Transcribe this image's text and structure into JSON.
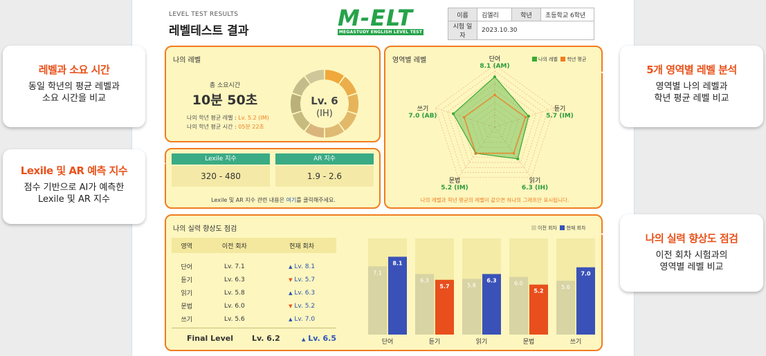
{
  "header": {
    "subtitle": "LEVEL TEST RESULTS",
    "title": "레벨테스트 결과",
    "logo_text": "M-ELT",
    "logo_sub": "MEGASTUDY ENGLISH LEVEL TEST",
    "info": {
      "name_label": "이름",
      "name_value": "김엘리",
      "grade_label": "학년",
      "grade_value": "초등학교 6학년",
      "date_label": "시험 일자",
      "date_value": "2023.10.30"
    }
  },
  "callouts": {
    "level": {
      "title": "레벨과 소요 시간",
      "desc1": "동일 학년의 평균 레벨과",
      "desc2": "소요 시간을 비교"
    },
    "lexile": {
      "title": "Lexile 및 AR 예측 지수",
      "desc1": "점수 기반으로 AI가 예측한",
      "desc2": "Lexile 및 AR 지수"
    },
    "radar": {
      "title": "5개 영역별 레벨 분석",
      "desc1": "영역별 나의 레벨과",
      "desc2": "학년 평균 레벨 비교"
    },
    "improve": {
      "title": "나의 실력 향상도 점검",
      "desc1": "이전 회차 시험과의",
      "desc2": "영역별 레벨 비교"
    }
  },
  "level_card": {
    "title": "나의 레벨",
    "time_label": "총 소요시간",
    "time_value": "10분 50초",
    "avg_level_label": "나의 학년 평균 레벨 : ",
    "avg_level_value": "Lv. 5.2 (IM)",
    "avg_time_label": "나의 학년 평균 시간 : ",
    "avg_time_value": "05분 22초",
    "level_main": "Lv. 6",
    "level_code": "(IH)",
    "level_fraction": 0.6,
    "colors": {
      "filled": "#e8a640",
      "empty": "#c8c58a",
      "accent": "#f07d20"
    }
  },
  "lexile_card": {
    "lexile_label": "Lexile 지수",
    "lexile_value": "320 - 480",
    "ar_label": "AR 지수",
    "ar_value": "1.9 - 2.6",
    "note_pre": "Lexile 및 AR 지수 관련 내용은 ",
    "note_link": "여기",
    "note_post": "를 클릭해주세요."
  },
  "radar_card": {
    "title": "영역별 레벨",
    "legend_mine": "나의 레벨",
    "legend_avg": "학년 평균",
    "note": "나의 레벨과 학년 평균의 레벨이 같으면 하나의 그래프만 표시됩니다.",
    "colors": {
      "mine": "#3aaa35",
      "avg": "#f07d20"
    }
  },
  "improve_card": {
    "title": "나의 실력 향상도 점검",
    "legend_prev": "이전 회차",
    "legend_curr": "현재 회차",
    "headers": [
      "영역",
      "이전 회차",
      "현재 회차"
    ],
    "rows": [
      {
        "area": "단어",
        "prev": "Lv. 7.1",
        "curr": "Lv. 8.1",
        "dir": "up"
      },
      {
        "area": "듣기",
        "prev": "Lv. 6.3",
        "curr": "Lv. 5.7",
        "dir": "down"
      },
      {
        "area": "읽기",
        "prev": "Lv. 5.8",
        "curr": "Lv. 6.3",
        "dir": "up"
      },
      {
        "area": "문법",
        "prev": "Lv. 6.0",
        "curr": "Lv. 5.2",
        "dir": "down"
      },
      {
        "area": "쓰기",
        "prev": "Lv. 5.6",
        "curr": "Lv. 7.0",
        "dir": "up"
      }
    ],
    "final_label": "Final Level",
    "final_prev": "Lv. 6.2",
    "final_curr": "Lv. 6.5",
    "colors": {
      "prev": "#d8d4a3",
      "up": "#3a52b8",
      "down": "#e84f1c",
      "bg": "#f3eba6"
    }
  },
  "chart_data": [
    {
      "type": "radar",
      "categories": [
        "단어",
        "듣기",
        "읽기",
        "문법",
        "쓰기"
      ],
      "series": [
        {
          "name": "나의 레벨",
          "values": [
            8.1,
            5.7,
            6.3,
            5.2,
            7.0
          ]
        }
      ],
      "value_labels": [
        "8.1 (AM)",
        "5.7 (IM)",
        "6.3 (IH)",
        "5.2 (IM)",
        "7.0 (AB)"
      ],
      "grade_average": [
        5.2,
        5.2,
        5.2,
        5.2,
        5.2
      ],
      "ylim": [
        0,
        10
      ]
    },
    {
      "type": "bar",
      "categories": [
        "단어",
        "듣기",
        "읽기",
        "문법",
        "쓰기"
      ],
      "series": [
        {
          "name": "이전 회차",
          "values": [
            7.1,
            6.3,
            5.8,
            6.0,
            5.6
          ]
        },
        {
          "name": "현재 회차",
          "values": [
            8.1,
            5.7,
            6.3,
            5.2,
            7.0
          ]
        }
      ],
      "ylim": [
        0,
        10
      ]
    }
  ]
}
